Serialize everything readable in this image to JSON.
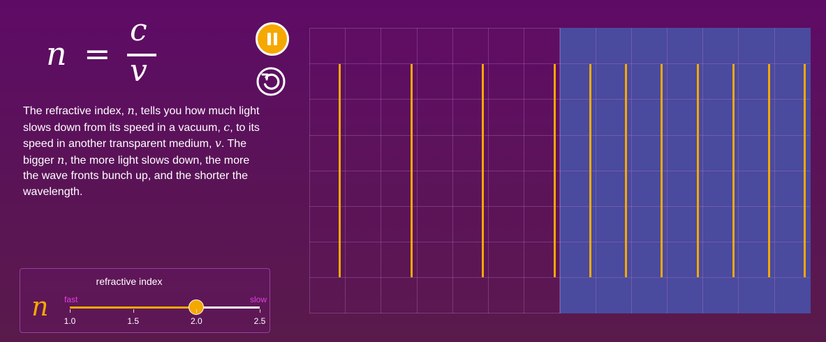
{
  "formula": {
    "lhs": "n",
    "equals": "=",
    "numerator": "c",
    "denominator": "v"
  },
  "controls": {
    "pause_icon": "pause-icon",
    "reset_icon": "reset-icon",
    "accent": "#f5a800"
  },
  "description": {
    "t1": "The refractive index, ",
    "n1": "n",
    "t2": ", tells you how much light slows down from its speed in a vacuum, ",
    "c": "c",
    "t3": ", to its speed in another transparent medium, ",
    "v": "v",
    "t4": ".  The bigger ",
    "n2": "n",
    "t5": ", the more light slows down, the more the wave fronts bunch up, and the shorter the wavelength."
  },
  "slider": {
    "title": "refractive index",
    "symbol": "n",
    "fast_label": "fast",
    "slow_label": "slow",
    "min": 1.0,
    "max": 2.5,
    "value": 2.0,
    "ticks": [
      "1.0",
      "1.5",
      "2.0",
      "2.5"
    ]
  },
  "simulation": {
    "medium_color": "#4a4a9e",
    "wavefront_color": "#f5a800",
    "refractive_index": 2.0
  }
}
